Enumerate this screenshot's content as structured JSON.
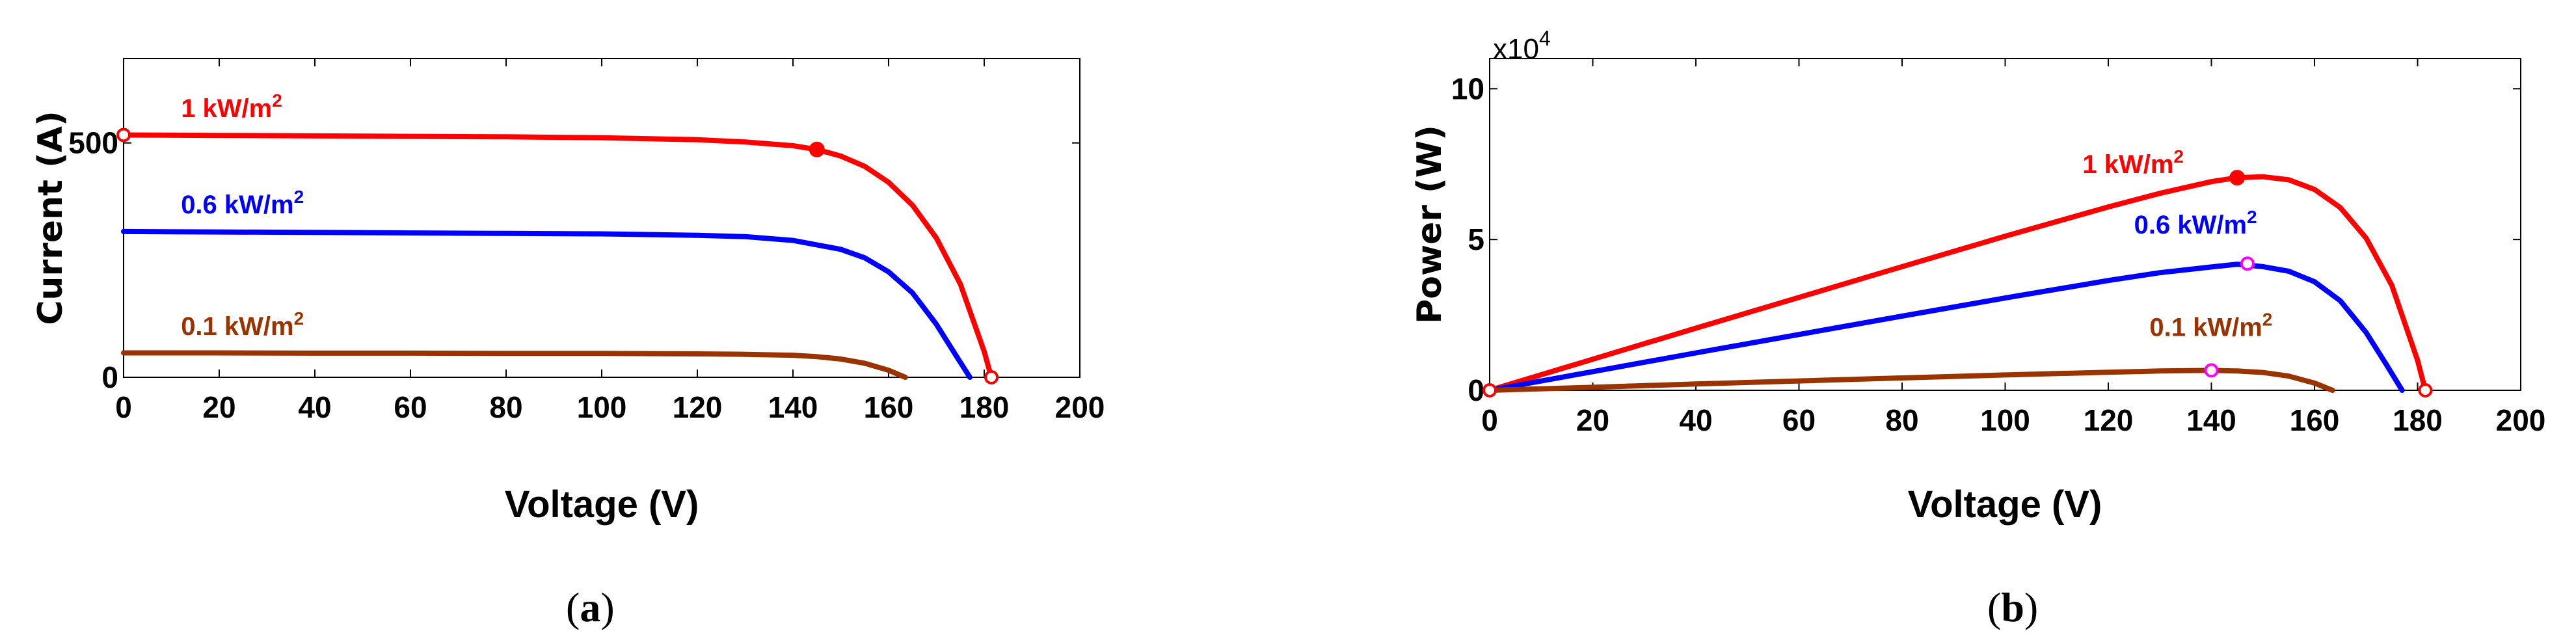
{
  "chart_data": [
    {
      "type": "line",
      "caption_letter": "a",
      "xlabel": "Voltage (V)",
      "ylabel": "Current (A)",
      "xlim": [
        0,
        200
      ],
      "ylim": [
        0,
        680
      ],
      "x_ticks": [
        0,
        20,
        40,
        60,
        80,
        100,
        120,
        140,
        160,
        180,
        200
      ],
      "y_ticks": [
        0,
        500
      ],
      "grid": false,
      "series": [
        {
          "name": "1 kW/m2",
          "color": "#ff0000",
          "x": [
            0,
            20,
            40,
            60,
            80,
            100,
            120,
            130,
            140,
            145,
            150,
            155,
            160,
            165,
            170,
            175,
            180,
            181.5
          ],
          "y": [
            517,
            516,
            515,
            514,
            513,
            511,
            507,
            502,
            494,
            486,
            472,
            450,
            416,
            367,
            297,
            199,
            55,
            0
          ]
        },
        {
          "name": "0.6 kW/m2",
          "color": "#0000ff",
          "x": [
            0,
            20,
            40,
            60,
            80,
            100,
            120,
            130,
            140,
            150,
            155,
            160,
            165,
            170,
            174,
            177
          ],
          "y": [
            311,
            310,
            309,
            308,
            307,
            306,
            303,
            300,
            292,
            273,
            255,
            225,
            180,
            113,
            48,
            0
          ]
        },
        {
          "name": "0.1 kW/m2",
          "color": "#993300",
          "x": [
            0,
            20,
            40,
            60,
            80,
            100,
            120,
            130,
            140,
            145,
            150,
            155,
            160,
            163.5
          ],
          "y": [
            52,
            52,
            51.5,
            51.5,
            51,
            51,
            50,
            49,
            47,
            44,
            39,
            30,
            15,
            0
          ]
        }
      ],
      "markers": [
        {
          "series": 0,
          "x": 0,
          "y": 517,
          "color": "#ff0000",
          "style": "open"
        },
        {
          "series": 0,
          "x": 145,
          "y": 486,
          "color": "#ff0000",
          "style": "filled"
        },
        {
          "series": 0,
          "x": 181.5,
          "y": 0,
          "color": "#ff0000",
          "style": "open"
        }
      ],
      "annotations": [
        {
          "text": "1 kW/m",
          "sup": "2",
          "x": 12,
          "y": 555,
          "color": "#ff0000"
        },
        {
          "text": "0.6 kW/m",
          "sup": "2",
          "x": 12,
          "y": 350,
          "color": "#0000ff"
        },
        {
          "text": "0.1 kW/m",
          "sup": "2",
          "x": 12,
          "y": 90,
          "color": "#993300"
        }
      ]
    },
    {
      "type": "line",
      "caption_letter": "b",
      "xlabel": "Voltage (V)",
      "ylabel": "Power (W)",
      "y_multiplier": "x10",
      "y_multiplier_exp": "4",
      "xlim": [
        0,
        200
      ],
      "ylim": [
        0,
        11
      ],
      "x_ticks": [
        0,
        20,
        40,
        60,
        80,
        100,
        120,
        140,
        160,
        180,
        200
      ],
      "y_ticks": [
        0,
        5,
        10
      ],
      "grid": false,
      "series": [
        {
          "name": "1 kW/m2",
          "color": "#ff0000",
          "x": [
            0,
            20,
            40,
            60,
            80,
            100,
            120,
            130,
            140,
            145,
            150,
            155,
            160,
            165,
            170,
            175,
            180,
            181.5
          ],
          "y": [
            0,
            1.03,
            2.06,
            3.08,
            4.1,
            5.11,
            6.08,
            6.53,
            6.92,
            7.05,
            7.08,
            6.98,
            6.66,
            6.06,
            5.05,
            3.48,
            0.99,
            0
          ]
        },
        {
          "name": "0.6 kW/m2",
          "color": "#0000ff",
          "x": [
            0,
            20,
            40,
            60,
            80,
            100,
            120,
            130,
            140,
            145,
            150,
            155,
            160,
            165,
            170,
            174,
            177
          ],
          "y": [
            0,
            0.62,
            1.24,
            1.85,
            2.46,
            3.06,
            3.64,
            3.9,
            4.09,
            4.18,
            4.1,
            3.95,
            3.6,
            2.97,
            1.92,
            0.84,
            0
          ]
        },
        {
          "name": "0.1 kW/m2",
          "color": "#993300",
          "x": [
            0,
            20,
            40,
            60,
            80,
            100,
            120,
            130,
            140,
            145,
            150,
            155,
            160,
            163.5
          ],
          "y": [
            0,
            0.1,
            0.21,
            0.31,
            0.41,
            0.51,
            0.6,
            0.64,
            0.66,
            0.64,
            0.59,
            0.47,
            0.24,
            0
          ]
        }
      ],
      "markers": [
        {
          "series": 0,
          "x": 0,
          "y": 0,
          "color": "#ff0000",
          "style": "open"
        },
        {
          "series": 0,
          "x": 145,
          "y": 7.05,
          "color": "#ff0000",
          "style": "filled"
        },
        {
          "series": 0,
          "x": 181.5,
          "y": 0,
          "color": "#ff0000",
          "style": "open"
        },
        {
          "series": 1,
          "x": 147,
          "y": 4.2,
          "color": "#ff00ff",
          "style": "open"
        },
        {
          "series": 2,
          "x": 140,
          "y": 0.66,
          "color": "#ff00ff",
          "style": "open"
        }
      ],
      "annotations": [
        {
          "text": "1 kW/m",
          "sup": "2",
          "x": 115,
          "y": 7.2,
          "color": "#ff0000"
        },
        {
          "text": "0.6 kW/m",
          "sup": "2",
          "x": 125,
          "y": 5.2,
          "color": "#0000ff"
        },
        {
          "text": "0.1 kW/m",
          "sup": "2",
          "x": 128,
          "y": 1.8,
          "color": "#993300"
        }
      ]
    }
  ]
}
